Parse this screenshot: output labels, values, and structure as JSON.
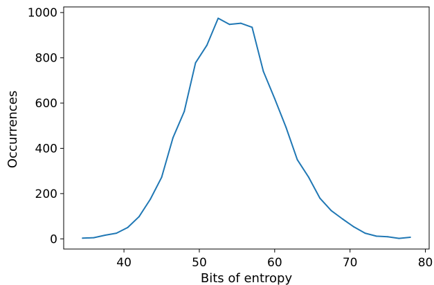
{
  "chart_data": {
    "type": "line",
    "xlabel": "Bits of entropy",
    "ylabel": "Occurrences",
    "xlim": [
      32,
      80.5
    ],
    "ylim": [
      -45,
      1025
    ],
    "x_ticks": [
      40,
      50,
      60,
      70,
      80
    ],
    "y_ticks": [
      0,
      200,
      400,
      600,
      800,
      1000
    ],
    "grid": false,
    "series": [
      {
        "color": "#1f77b4",
        "x": [
          34.5,
          36.0,
          37.5,
          39.0,
          40.5,
          42.0,
          43.5,
          45.0,
          46.5,
          48.0,
          49.5,
          51.0,
          52.5,
          54.0,
          55.5,
          57.0,
          58.5,
          60.0,
          61.5,
          63.0,
          64.5,
          66.0,
          67.5,
          69.0,
          70.5,
          72.0,
          73.5,
          75.0,
          76.5,
          78.0
        ],
        "y": [
          3,
          5,
          16,
          25,
          50,
          98,
          175,
          272,
          447,
          563,
          778,
          855,
          975,
          948,
          953,
          935,
          740,
          620,
          493,
          350,
          273,
          180,
          125,
          88,
          53,
          25,
          12,
          9,
          2,
          7
        ]
      }
    ]
  }
}
